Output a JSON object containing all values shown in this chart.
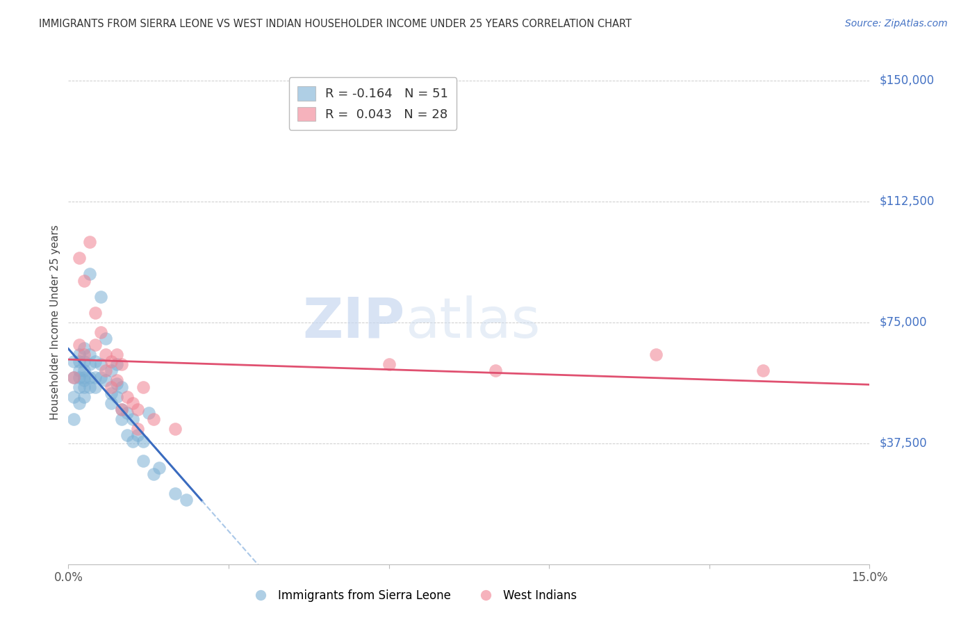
{
  "title": "IMMIGRANTS FROM SIERRA LEONE VS WEST INDIAN HOUSEHOLDER INCOME UNDER 25 YEARS CORRELATION CHART",
  "source": "Source: ZipAtlas.com",
  "ylabel": "Householder Income Under 25 years",
  "xlim": [
    0.0,
    0.15
  ],
  "ylim": [
    0,
    150000
  ],
  "yticks": [
    0,
    37500,
    75000,
    112500,
    150000
  ],
  "ytick_labels": [
    "",
    "$37,500",
    "$75,000",
    "$112,500",
    "$150,000"
  ],
  "background_color": "#ffffff",
  "watermark_part1": "ZIP",
  "watermark_part2": "atlas",
  "legend_label1": "Immigrants from Sierra Leone",
  "legend_label2": "West Indians",
  "sierra_leone_color": "#7bafd4",
  "west_indian_color": "#f08090",
  "grid_color": "#cccccc",
  "right_tick_color": "#4472c4",
  "title_color": "#333333",
  "sl_line_color": "#3a6bbf",
  "wi_line_color": "#e05070",
  "sl_dash_color": "#aac8e8",
  "legend_r1": "R = -0.164",
  "legend_n1": "N = 51",
  "legend_r2": "R =  0.043",
  "legend_n2": "N = 28",
  "sierra_leone_x": [
    0.001,
    0.001,
    0.001,
    0.001,
    0.002,
    0.002,
    0.002,
    0.002,
    0.002,
    0.002,
    0.003,
    0.003,
    0.003,
    0.003,
    0.003,
    0.003,
    0.003,
    0.004,
    0.004,
    0.004,
    0.004,
    0.004,
    0.005,
    0.005,
    0.005,
    0.006,
    0.006,
    0.006,
    0.007,
    0.007,
    0.008,
    0.008,
    0.008,
    0.009,
    0.009,
    0.009,
    0.01,
    0.01,
    0.01,
    0.011,
    0.011,
    0.012,
    0.012,
    0.013,
    0.014,
    0.014,
    0.015,
    0.016,
    0.017,
    0.02,
    0.022
  ],
  "sierra_leone_y": [
    63000,
    58000,
    52000,
    45000,
    65000,
    63000,
    60000,
    58000,
    55000,
    50000,
    67000,
    63000,
    60000,
    58000,
    57000,
    55000,
    52000,
    90000,
    65000,
    62000,
    58000,
    55000,
    63000,
    58000,
    55000,
    83000,
    62000,
    58000,
    70000,
    57000,
    60000,
    53000,
    50000,
    62000,
    56000,
    52000,
    55000,
    48000,
    45000,
    47000,
    40000,
    45000,
    38000,
    40000,
    38000,
    32000,
    47000,
    28000,
    30000,
    22000,
    20000
  ],
  "west_indian_x": [
    0.001,
    0.002,
    0.002,
    0.003,
    0.003,
    0.004,
    0.005,
    0.005,
    0.006,
    0.007,
    0.007,
    0.008,
    0.008,
    0.009,
    0.009,
    0.01,
    0.01,
    0.011,
    0.012,
    0.013,
    0.013,
    0.014,
    0.016,
    0.02,
    0.06,
    0.08,
    0.11,
    0.13
  ],
  "west_indian_y": [
    58000,
    95000,
    68000,
    88000,
    65000,
    100000,
    78000,
    68000,
    72000,
    65000,
    60000,
    63000,
    55000,
    65000,
    57000,
    62000,
    48000,
    52000,
    50000,
    48000,
    42000,
    55000,
    45000,
    42000,
    62000,
    60000,
    65000,
    60000
  ]
}
